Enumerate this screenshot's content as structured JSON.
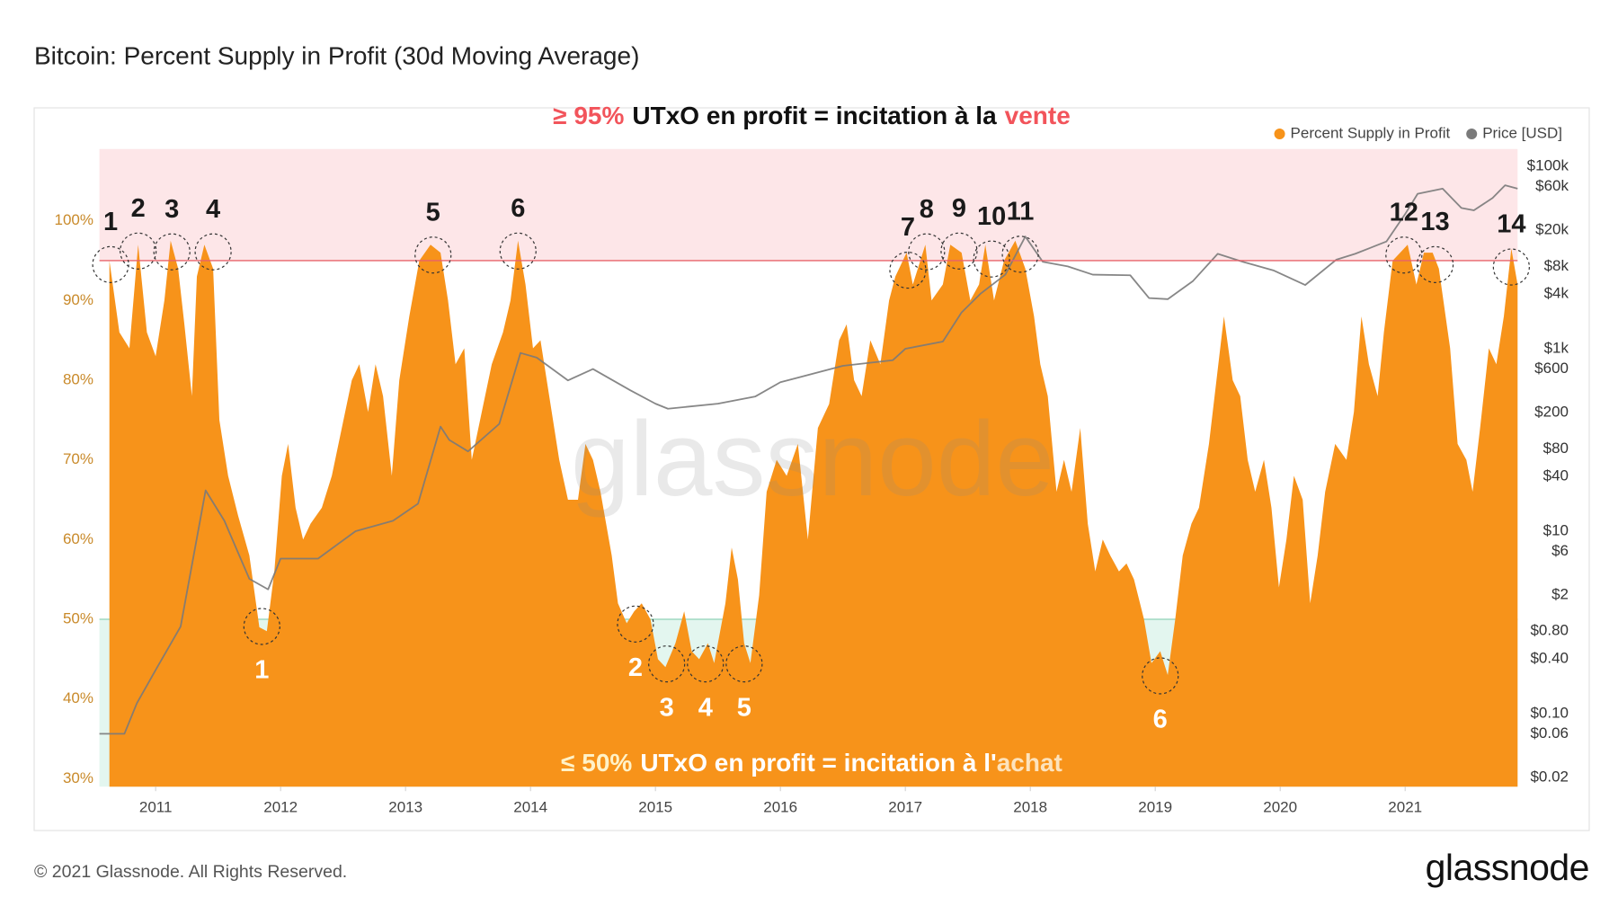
{
  "chart_data": {
    "type": "area",
    "title": "Bitcoin: Percent Supply in Profit (30d Moving Average)",
    "x": [
      2010.63,
      2010.71,
      2010.79,
      2010.86,
      2010.93,
      2011.0,
      2011.07,
      2011.12,
      2011.18,
      2011.23,
      2011.29,
      2011.33,
      2011.39,
      2011.46,
      2011.51,
      2011.58,
      2011.66,
      2011.75,
      2011.83,
      2011.89,
      2011.95,
      2012.01,
      2012.06,
      2012.12,
      2012.18,
      2012.24,
      2012.33,
      2012.41,
      2012.49,
      2012.57,
      2012.63,
      2012.7,
      2012.76,
      2012.82,
      2012.89,
      2012.95,
      2013.03,
      2013.11,
      2013.2,
      2013.28,
      2013.34,
      2013.4,
      2013.47,
      2013.53,
      2013.61,
      2013.69,
      2013.78,
      2013.84,
      2013.9,
      2013.96,
      2014.02,
      2014.08,
      2014.15,
      2014.23,
      2014.3,
      2014.38,
      2014.44,
      2014.5,
      2014.56,
      2014.65,
      2014.7,
      2014.77,
      2014.83,
      2014.89,
      2014.96,
      2015.02,
      2015.08,
      2015.16,
      2015.23,
      2015.29,
      2015.35,
      2015.42,
      2015.47,
      2015.56,
      2015.61,
      2015.66,
      2015.71,
      2015.76,
      2015.83,
      2015.89,
      2015.97,
      2016.05,
      2016.14,
      2016.22,
      2016.3,
      2016.39,
      2016.47,
      2016.53,
      2016.59,
      2016.65,
      2016.72,
      2016.8,
      2016.87,
      2016.92,
      2017.01,
      2017.06,
      2017.16,
      2017.21,
      2017.3,
      2017.36,
      2017.45,
      2017.52,
      2017.59,
      2017.64,
      2017.71,
      2017.79,
      2017.88,
      2017.96,
      2018.03,
      2018.08,
      2018.14,
      2018.21,
      2018.27,
      2018.33,
      2018.4,
      2018.46,
      2018.52,
      2018.58,
      2018.64,
      2018.71,
      2018.77,
      2018.83,
      2018.91,
      2018.97,
      2019.04,
      2019.1,
      2019.16,
      2019.22,
      2019.29,
      2019.35,
      2019.43,
      2019.49,
      2019.55,
      2019.62,
      2019.68,
      2019.74,
      2019.8,
      2019.87,
      2019.93,
      2019.99,
      2020.05,
      2020.11,
      2020.18,
      2020.24,
      2020.3,
      2020.36,
      2020.44,
      2020.53,
      2020.59,
      2020.65,
      2020.71,
      2020.78,
      2020.83,
      2020.9,
      2020.96,
      2021.02,
      2021.09,
      2021.15,
      2021.22,
      2021.27,
      2021.36,
      2021.42,
      2021.49,
      2021.54,
      2021.6,
      2021.67,
      2021.73,
      2021.79,
      2021.85,
      2021.9
    ],
    "series": [
      {
        "name": "Percent Supply in Profit",
        "color": "#f7931a",
        "values": [
          95,
          86,
          84,
          97,
          86,
          83,
          90,
          97.5,
          94,
          87,
          78,
          93,
          97,
          94,
          75,
          68,
          63,
          58,
          49,
          48.5,
          56,
          68,
          72,
          64,
          60,
          62,
          64,
          68,
          74,
          80,
          82,
          76,
          82,
          78,
          68,
          80,
          88,
          95,
          97,
          96,
          90,
          82,
          84,
          70,
          76,
          82,
          86,
          90,
          97.5,
          92,
          84,
          85,
          78,
          70,
          65,
          65,
          72,
          70,
          66,
          58,
          52,
          49.5,
          51,
          52,
          50,
          45,
          44,
          47,
          51,
          46,
          45,
          47,
          44.5,
          52,
          59,
          55,
          47,
          44.5,
          53,
          66,
          70,
          68,
          72,
          60,
          74,
          77,
          85,
          87,
          80,
          78,
          85,
          82,
          90,
          93,
          96,
          92,
          97,
          90,
          92,
          97,
          96,
          90,
          92,
          97,
          90,
          95,
          97.5,
          94,
          88,
          82,
          78,
          66,
          70,
          66,
          74,
          62,
          56,
          60,
          58,
          56,
          57,
          55,
          50,
          44.5,
          46,
          43,
          50,
          58,
          62,
          64,
          72,
          80,
          88,
          80,
          78,
          70,
          66,
          70,
          64,
          54,
          60,
          68,
          65,
          52,
          58,
          66,
          72,
          70,
          76,
          88,
          82,
          78,
          86,
          95,
          96,
          97,
          92,
          96,
          96,
          94,
          84,
          72,
          70,
          66,
          74,
          84,
          82,
          88,
          96.5,
          92
        ]
      },
      {
        "name": "Price [USD]",
        "color": "#7a7a7a",
        "type": "line",
        "axis": "y2",
        "x": [
          2010.55,
          2010.75,
          2010.85,
          2011.0,
          2011.2,
          2011.4,
          2011.55,
          2011.75,
          2011.9,
          2012.0,
          2012.3,
          2012.6,
          2012.9,
          2013.1,
          2013.28,
          2013.35,
          2013.5,
          2013.75,
          2013.92,
          2014.05,
          2014.3,
          2014.5,
          2014.8,
          2015.0,
          2015.1,
          2015.5,
          2015.8,
          2016.0,
          2016.5,
          2016.9,
          2017.0,
          2017.3,
          2017.45,
          2017.6,
          2017.8,
          2017.96,
          2018.1,
          2018.3,
          2018.5,
          2018.8,
          2018.95,
          2019.1,
          2019.3,
          2019.5,
          2019.7,
          2019.95,
          2020.2,
          2020.45,
          2020.6,
          2020.85,
          2021.0,
          2021.1,
          2021.3,
          2021.45,
          2021.55,
          2021.7,
          2021.8,
          2021.9
        ],
        "values": [
          0.06,
          0.06,
          0.13,
          0.3,
          0.9,
          28,
          13,
          3,
          2.3,
          5,
          5,
          10,
          13,
          20,
          140,
          100,
          75,
          150,
          900,
          800,
          450,
          600,
          350,
          250,
          220,
          250,
          300,
          430,
          650,
          750,
          1000,
          1200,
          2500,
          4000,
          6500,
          17000,
          9000,
          8000,
          6500,
          6400,
          3600,
          3500,
          5500,
          11000,
          9000,
          7200,
          5000,
          9500,
          11000,
          15000,
          30000,
          50000,
          57000,
          35000,
          33000,
          45000,
          62000,
          57000
        ]
      }
    ],
    "xlim": [
      2010.55,
      2021.9
    ],
    "xticks": [
      2011,
      2012,
      2013,
      2014,
      2015,
      2016,
      2017,
      2018,
      2019,
      2020,
      2021
    ],
    "ylim": [
      29,
      109
    ],
    "yticks": [
      {
        "value": 30,
        "label": "30%"
      },
      {
        "value": 40,
        "label": "40%"
      },
      {
        "value": 50,
        "label": "50%"
      },
      {
        "value": 60,
        "label": "60%"
      },
      {
        "value": 70,
        "label": "70%"
      },
      {
        "value": 80,
        "label": "80%"
      },
      {
        "value": 90,
        "label": "90%"
      },
      {
        "value": 100,
        "label": "100%"
      }
    ],
    "y2lim": [
      0.0158,
      155000
    ],
    "y2scale": "log",
    "y2ticks": [
      {
        "value": 100000,
        "label": "$100k"
      },
      {
        "value": 60000,
        "label": "$60k"
      },
      {
        "value": 20000,
        "label": "$20k"
      },
      {
        "value": 8000,
        "label": "$8k"
      },
      {
        "value": 4000,
        "label": "$4k"
      },
      {
        "value": 1000,
        "label": "$1k"
      },
      {
        "value": 600,
        "label": "$600"
      },
      {
        "value": 200,
        "label": "$200"
      },
      {
        "value": 80,
        "label": "$80"
      },
      {
        "value": 40,
        "label": "$40"
      },
      {
        "value": 10,
        "label": "$10"
      },
      {
        "value": 6,
        "label": "$6"
      },
      {
        "value": 2,
        "label": "$2"
      },
      {
        "value": 0.8,
        "label": "$0.80"
      },
      {
        "value": 0.4,
        "label": "$0.40"
      },
      {
        "value": 0.1,
        "label": "$0.10"
      },
      {
        "value": 0.06,
        "label": "$0.06"
      },
      {
        "value": 0.02,
        "label": "$0.02"
      }
    ],
    "legend": "top-right",
    "grid": false,
    "thresholds": {
      "sell": 95,
      "buy": 50
    },
    "annotations": {
      "sell_text": [
        "≥ 95%",
        "UTxO en profit = incitation à la",
        "vente"
      ],
      "buy_text": [
        "≤ 50%",
        "UTxO en profit = incitation à l'",
        "achat"
      ],
      "tops": [
        {
          "label": "1",
          "x": 2010.64,
          "y": 94.5
        },
        {
          "label": "2",
          "x": 2010.86,
          "y": 96.2
        },
        {
          "label": "3",
          "x": 2011.13,
          "y": 96.1
        },
        {
          "label": "4",
          "x": 2011.46,
          "y": 96.1
        },
        {
          "label": "5",
          "x": 2013.22,
          "y": 95.7
        },
        {
          "label": "6",
          "x": 2013.9,
          "y": 96.2
        },
        {
          "label": "7",
          "x": 2017.02,
          "y": 93.8
        },
        {
          "label": "8",
          "x": 2017.17,
          "y": 96.1
        },
        {
          "label": "9",
          "x": 2017.43,
          "y": 96.2
        },
        {
          "label": "10",
          "x": 2017.69,
          "y": 95.2
        },
        {
          "label": "11",
          "x": 2017.92,
          "y": 95.8
        },
        {
          "label": "12",
          "x": 2020.99,
          "y": 95.7
        },
        {
          "label": "13",
          "x": 2021.24,
          "y": 94.5
        },
        {
          "label": "14",
          "x": 2021.85,
          "y": 94.2
        }
      ],
      "bottoms": [
        {
          "label": "1",
          "x": 2011.85,
          "y": 49.1
        },
        {
          "label": "2",
          "x": 2014.84,
          "y": 49.4
        },
        {
          "label": "3",
          "x": 2015.09,
          "y": 44.4
        },
        {
          "label": "4",
          "x": 2015.4,
          "y": 44.4
        },
        {
          "label": "5",
          "x": 2015.71,
          "y": 44.4
        },
        {
          "label": "6",
          "x": 2019.04,
          "y": 42.9
        }
      ]
    }
  },
  "watermark": "glassnode",
  "footer": {
    "copyright": "© 2021 Glassnode. All Rights Reserved.",
    "logo": "glassnode"
  }
}
